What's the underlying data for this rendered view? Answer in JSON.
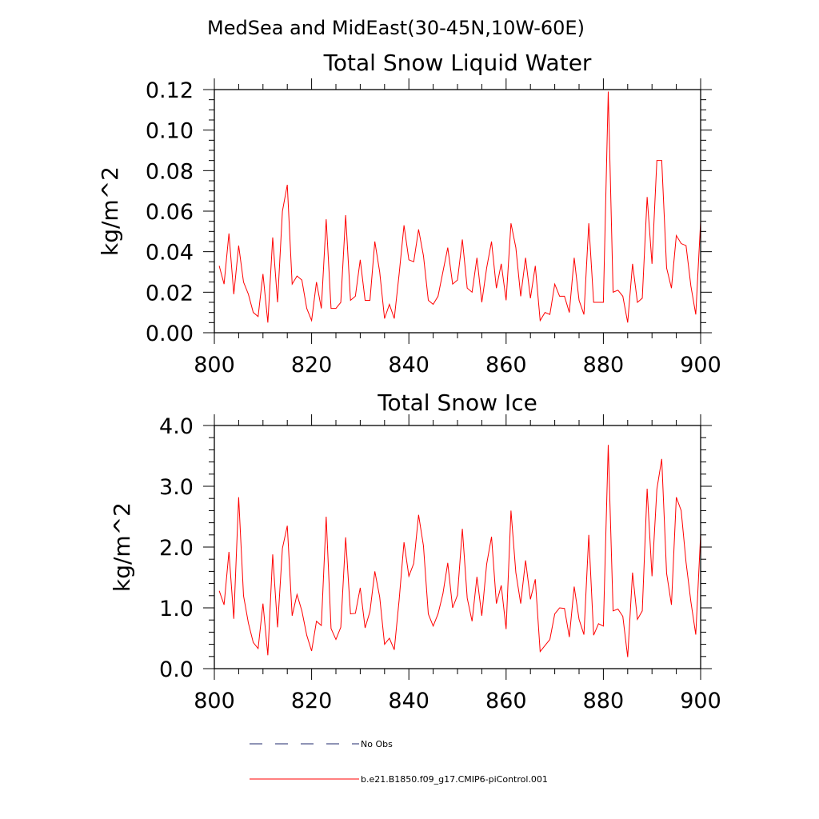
{
  "figure": {
    "suptitle": "MedSea and MidEast(30-45N,10W-60E)"
  },
  "chart_data": [
    {
      "type": "line",
      "title": "Total Snow Liquid Water",
      "xlabel": "",
      "ylabel": "kg/m^2",
      "xlim": [
        800,
        900
      ],
      "ylim": [
        0,
        0.12
      ],
      "xticks": [
        800,
        820,
        840,
        860,
        880,
        900
      ],
      "xtick_labels": [
        "800",
        "820",
        "840",
        "860",
        "880",
        "900"
      ],
      "yticks": [
        0,
        0.02,
        0.04,
        0.06,
        0.08,
        0.1,
        0.12
      ],
      "ytick_labels": [
        "0.00",
        "0.02",
        "0.04",
        "0.06",
        "0.08",
        "0.10",
        "0.12"
      ],
      "minor_xstep": 5,
      "minor_ystep": 0.005,
      "x_start": 801,
      "series": [
        {
          "name": "b.e21.B1850.f09_g17.CMIP6-piControl.001",
          "color": "#ff0000",
          "values": [
            0.033,
            0.024,
            0.049,
            0.019,
            0.043,
            0.025,
            0.019,
            0.01,
            0.008,
            0.029,
            0.005,
            0.047,
            0.015,
            0.06,
            0.073,
            0.024,
            0.028,
            0.026,
            0.012,
            0.006,
            0.025,
            0.012,
            0.056,
            0.012,
            0.012,
            0.015,
            0.058,
            0.016,
            0.018,
            0.036,
            0.016,
            0.016,
            0.045,
            0.03,
            0.007,
            0.014,
            0.007,
            0.029,
            0.053,
            0.036,
            0.035,
            0.051,
            0.038,
            0.016,
            0.014,
            0.018,
            0.03,
            0.042,
            0.024,
            0.026,
            0.046,
            0.022,
            0.02,
            0.037,
            0.015,
            0.032,
            0.045,
            0.022,
            0.034,
            0.016,
            0.054,
            0.042,
            0.018,
            0.037,
            0.017,
            0.033,
            0.006,
            0.01,
            0.009,
            0.024,
            0.018,
            0.018,
            0.01,
            0.037,
            0.016,
            0.009,
            0.054,
            0.015,
            0.015,
            0.015,
            0.119,
            0.02,
            0.021,
            0.018,
            0.005,
            0.034,
            0.015,
            0.017,
            0.067,
            0.034,
            0.085,
            0.085,
            0.032,
            0.022,
            0.048,
            0.044,
            0.043,
            0.023,
            0.009,
            0.055
          ]
        }
      ]
    },
    {
      "type": "line",
      "title": "Total Snow Ice",
      "xlabel": "",
      "ylabel": "kg/m^2",
      "xlim": [
        800,
        900
      ],
      "ylim": [
        0,
        4
      ],
      "xticks": [
        800,
        820,
        840,
        860,
        880,
        900
      ],
      "xtick_labels": [
        "800",
        "820",
        "840",
        "860",
        "880",
        "900"
      ],
      "yticks": [
        0,
        1,
        2,
        3,
        4
      ],
      "ytick_labels": [
        "0.0",
        "1.0",
        "2.0",
        "3.0",
        "4.0"
      ],
      "minor_xstep": 5,
      "minor_ystep": 0.2,
      "x_start": 801,
      "series": [
        {
          "name": "b.e21.B1850.f09_g17.CMIP6-piControl.001",
          "color": "#ff0000",
          "values": [
            1.28,
            1.05,
            1.92,
            0.82,
            2.82,
            1.2,
            0.75,
            0.43,
            0.33,
            1.07,
            0.22,
            1.88,
            0.68,
            1.98,
            2.35,
            0.87,
            1.22,
            0.95,
            0.55,
            0.29,
            0.78,
            0.71,
            2.5,
            0.66,
            0.48,
            0.68,
            2.16,
            0.9,
            0.91,
            1.33,
            0.67,
            0.94,
            1.6,
            1.18,
            0.4,
            0.5,
            0.31,
            1.13,
            2.08,
            1.52,
            1.73,
            2.53,
            2.02,
            0.9,
            0.7,
            0.9,
            1.23,
            1.74,
            1.0,
            1.21,
            2.3,
            1.16,
            0.78,
            1.51,
            0.87,
            1.72,
            2.17,
            1.07,
            1.37,
            0.65,
            2.6,
            1.58,
            1.07,
            1.78,
            1.14,
            1.47,
            0.28,
            0.38,
            0.48,
            0.9,
            1.0,
            0.99,
            0.52,
            1.35,
            0.81,
            0.56,
            2.2,
            0.55,
            0.74,
            0.7,
            3.68,
            0.95,
            0.98,
            0.86,
            0.19,
            1.58,
            0.81,
            0.95,
            2.96,
            1.52,
            2.95,
            3.45,
            1.57,
            1.05,
            2.82,
            2.6,
            1.75,
            1.1,
            0.56,
            2.21
          ]
        }
      ]
    }
  ],
  "legend": {
    "items": [
      {
        "label": "No Obs",
        "style": "dashed",
        "color": "#1f2a6b"
      },
      {
        "label": "b.e21.B1850.f09_g17.CMIP6-piControl.001",
        "style": "solid",
        "color": "#ff0000"
      }
    ]
  }
}
